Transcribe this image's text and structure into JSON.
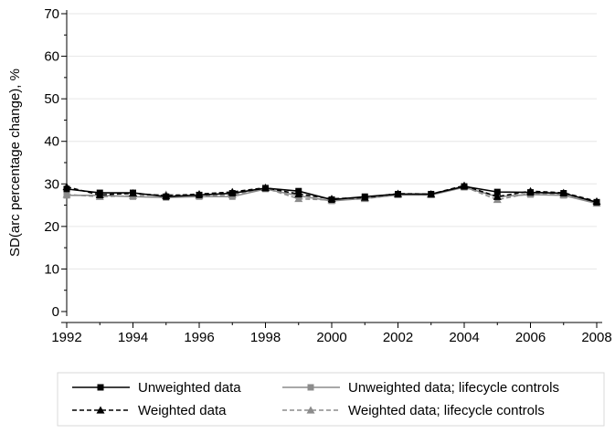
{
  "chart_data": {
    "type": "line",
    "title": "",
    "xlabel": "",
    "ylabel": "SD(arc percentage change), %",
    "xlim": [
      1992,
      2008
    ],
    "ylim": [
      0,
      70
    ],
    "x_ticks": [
      1992,
      1994,
      1996,
      1998,
      2000,
      2002,
      2004,
      2006,
      2008
    ],
    "y_ticks": [
      0,
      10,
      20,
      30,
      40,
      50,
      60,
      70
    ],
    "grid": "horizontal",
    "legend_position": "bottom",
    "x": [
      1992,
      1993,
      1994,
      1995,
      1996,
      1997,
      1998,
      1999,
      2000,
      2001,
      2002,
      2003,
      2004,
      2005,
      2006,
      2007,
      2008
    ],
    "series": [
      {
        "name": "Unweighted data",
        "color": "#000000",
        "dash": "solid",
        "marker": "square",
        "values": [
          28.8,
          27.9,
          27.9,
          27.0,
          27.4,
          27.8,
          29.0,
          28.3,
          26.3,
          27.0,
          27.6,
          27.6,
          29.4,
          28.1,
          28.0,
          27.8,
          25.7
        ]
      },
      {
        "name": "Unweighted data; lifecycle controls",
        "color": "#8c8c8c",
        "dash": "solid",
        "marker": "square",
        "values": [
          27.3,
          27.3,
          27.0,
          26.8,
          27.0,
          27.0,
          28.8,
          27.2,
          26.0,
          26.6,
          27.4,
          27.4,
          29.2,
          27.0,
          27.5,
          27.3,
          25.4
        ]
      },
      {
        "name": "Weighted data",
        "color": "#000000",
        "dash": "dashed",
        "marker": "triangle",
        "values": [
          29.3,
          27.4,
          27.8,
          27.2,
          27.6,
          28.1,
          29.1,
          27.6,
          26.5,
          26.8,
          27.7,
          27.6,
          29.6,
          27.0,
          28.3,
          27.9,
          25.9
        ]
      },
      {
        "name": "Weighted data; lifecycle controls",
        "color": "#8c8c8c",
        "dash": "dashed",
        "marker": "triangle",
        "values": [
          27.5,
          27.0,
          27.2,
          27.5,
          27.2,
          27.4,
          29.0,
          26.5,
          26.2,
          26.5,
          27.5,
          27.5,
          29.3,
          26.3,
          27.8,
          27.4,
          25.5
        ]
      }
    ]
  }
}
